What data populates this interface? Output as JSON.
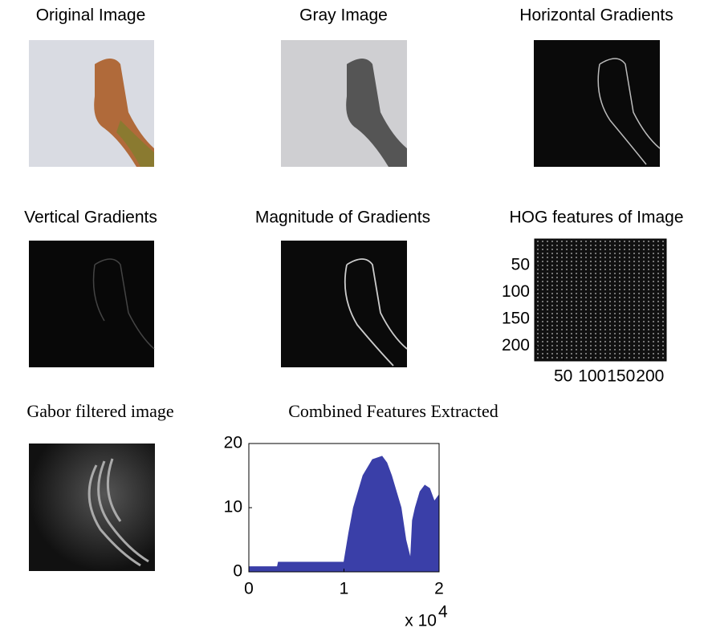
{
  "panels": [
    {
      "title": "Original Image"
    },
    {
      "title": "Gray Image"
    },
    {
      "title": "Horizontal Gradients"
    },
    {
      "title": "Vertical Gradients"
    },
    {
      "title": "Magnitude of Gradients"
    },
    {
      "title": "HOG features of Image"
    },
    {
      "title": "Gabor filtered image"
    }
  ],
  "hog": {
    "xlim": [
      0.5,
      228
    ],
    "ylim": [
      0.5,
      228
    ],
    "xticks": [
      50,
      100,
      150,
      200
    ],
    "yticks": [
      50,
      100,
      150,
      200
    ]
  },
  "chart_data": {
    "type": "area",
    "title": "Combined Features Extracted",
    "x": [
      0,
      0.3,
      0.31,
      1.0,
      1.05,
      1.1,
      1.2,
      1.3,
      1.4,
      1.45,
      1.5,
      1.6,
      1.65,
      1.7,
      1.72,
      1.75,
      1.8,
      1.85,
      1.9,
      1.95,
      2.0
    ],
    "values": [
      0.8,
      0.8,
      1.5,
      1.5,
      6,
      10,
      15,
      17.5,
      18,
      17,
      15,
      10,
      5,
      2,
      8,
      10,
      12.5,
      13.5,
      13,
      11,
      12
    ],
    "color": "#3a3fa8",
    "xlim": [
      0,
      2
    ],
    "xticks": [
      0,
      1,
      2
    ],
    "ylim": [
      0,
      20
    ],
    "yticks": [
      0,
      10,
      20
    ],
    "x_multiplier": "x 10",
    "x_multiplier_exp": "4"
  }
}
